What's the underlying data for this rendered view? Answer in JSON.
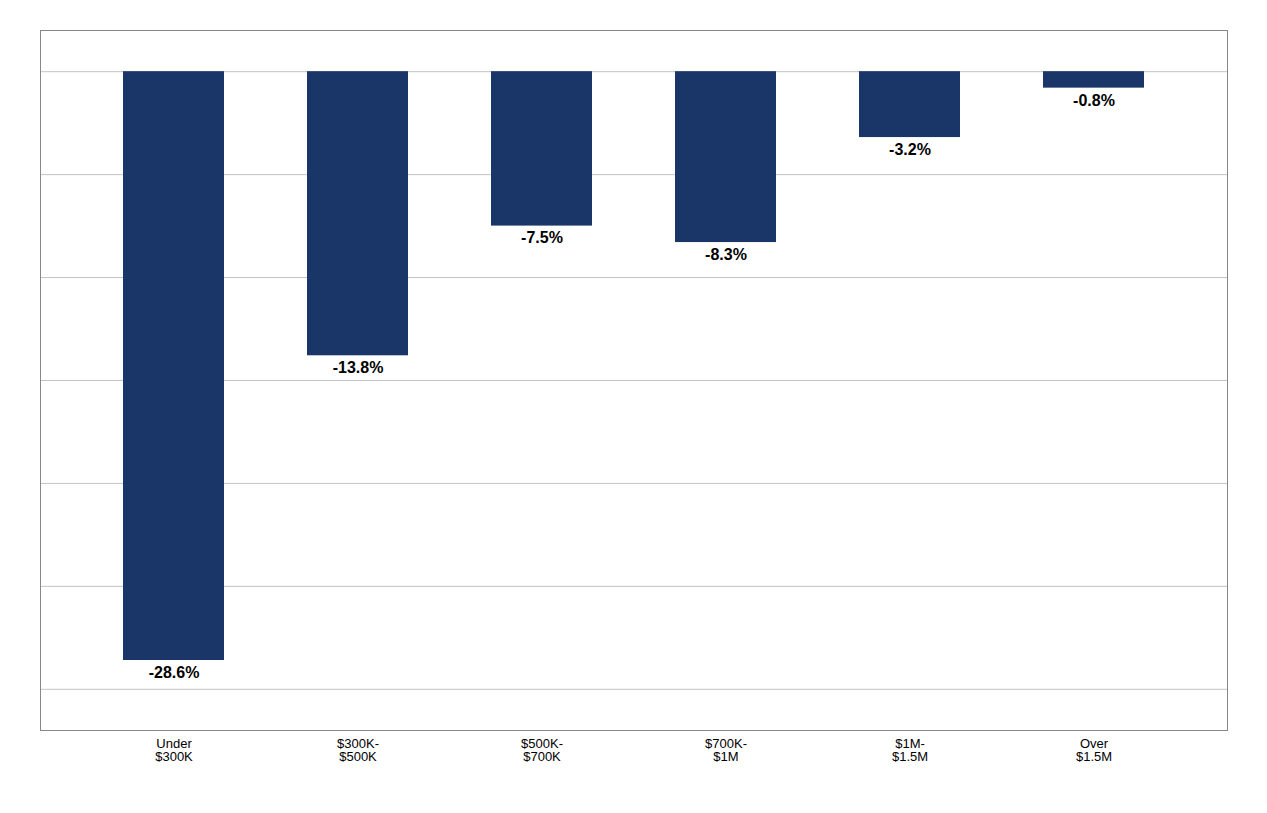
{
  "chart_data": {
    "type": "bar",
    "categories": [
      "Under\n$300K",
      "$300K-\n$500K",
      "$500K-\n$700K",
      "$700K-\n$1M",
      "$1M-\n$1.5M",
      "Over\n$1.5M"
    ],
    "values": [
      -28.6,
      -13.8,
      -7.5,
      -8.3,
      -3.2,
      -0.8
    ],
    "value_labels": [
      "-28.6%",
      "-13.8%",
      "-7.5%",
      "-8.3%",
      "-3.2%",
      "-0.8%"
    ],
    "color": "#1a3668",
    "ylim": [
      -32,
      2
    ],
    "yticks": [
      -30,
      -25,
      -20,
      -15,
      -10,
      -5,
      0
    ],
    "grid": true,
    "data_labels": true,
    "tick_labels": "x"
  }
}
